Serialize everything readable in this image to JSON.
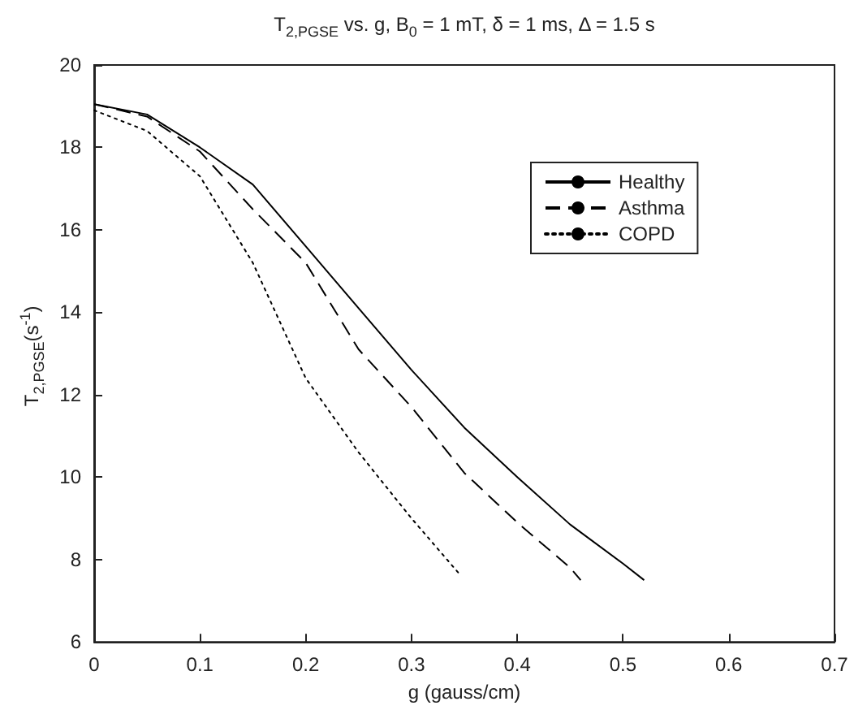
{
  "chart_data": {
    "type": "line",
    "title": "T$_{2,PGSE}$ vs. g, B$_{0}$ = 1 mT, δ = 1 ms, Δ = 1.5 s",
    "xlabel": "g (gauss/cm)",
    "ylabel": "T$_{2,PGSE}$(s$^{-1}$)",
    "x": [
      0,
      0.05,
      0.1,
      0.15,
      0.2,
      0.25,
      0.3,
      0.35,
      0.4,
      0.45,
      0.5,
      0.52
    ],
    "series": [
      {
        "name": "Healthy",
        "color": "#000000",
        "line_style": "solid",
        "values": [
          19.05,
          18.8,
          18.0,
          17.1,
          15.6,
          14.1,
          12.6,
          11.2,
          10.0,
          8.85,
          7.9,
          7.5
        ]
      },
      {
        "name": "Asthma",
        "color": "#000000",
        "line_style": "dashed",
        "x": [
          0,
          0.05,
          0.1,
          0.15,
          0.2,
          0.25,
          0.3,
          0.35,
          0.4,
          0.45,
          0.46
        ],
        "values": [
          19.05,
          18.75,
          17.9,
          16.5,
          15.2,
          13.1,
          11.7,
          10.1,
          8.9,
          7.8,
          7.5
        ]
      },
      {
        "name": "COPD",
        "color": "#000000",
        "line_style": "dotted",
        "x": [
          0,
          0.05,
          0.1,
          0.15,
          0.2,
          0.25,
          0.3,
          0.347
        ],
        "values": [
          18.9,
          18.4,
          17.3,
          15.2,
          12.4,
          10.6,
          9.0,
          7.6
        ]
      }
    ],
    "xlim": [
      0,
      0.7
    ],
    "xticks": [
      0,
      0.1,
      0.2,
      0.3,
      0.4,
      0.5,
      0.6,
      0.7
    ],
    "ylim": [
      6,
      20
    ],
    "yticks": [
      6,
      8,
      10,
      12,
      14,
      16,
      18,
      20
    ],
    "grid": false,
    "legend": "top right",
    "marker": "none"
  }
}
